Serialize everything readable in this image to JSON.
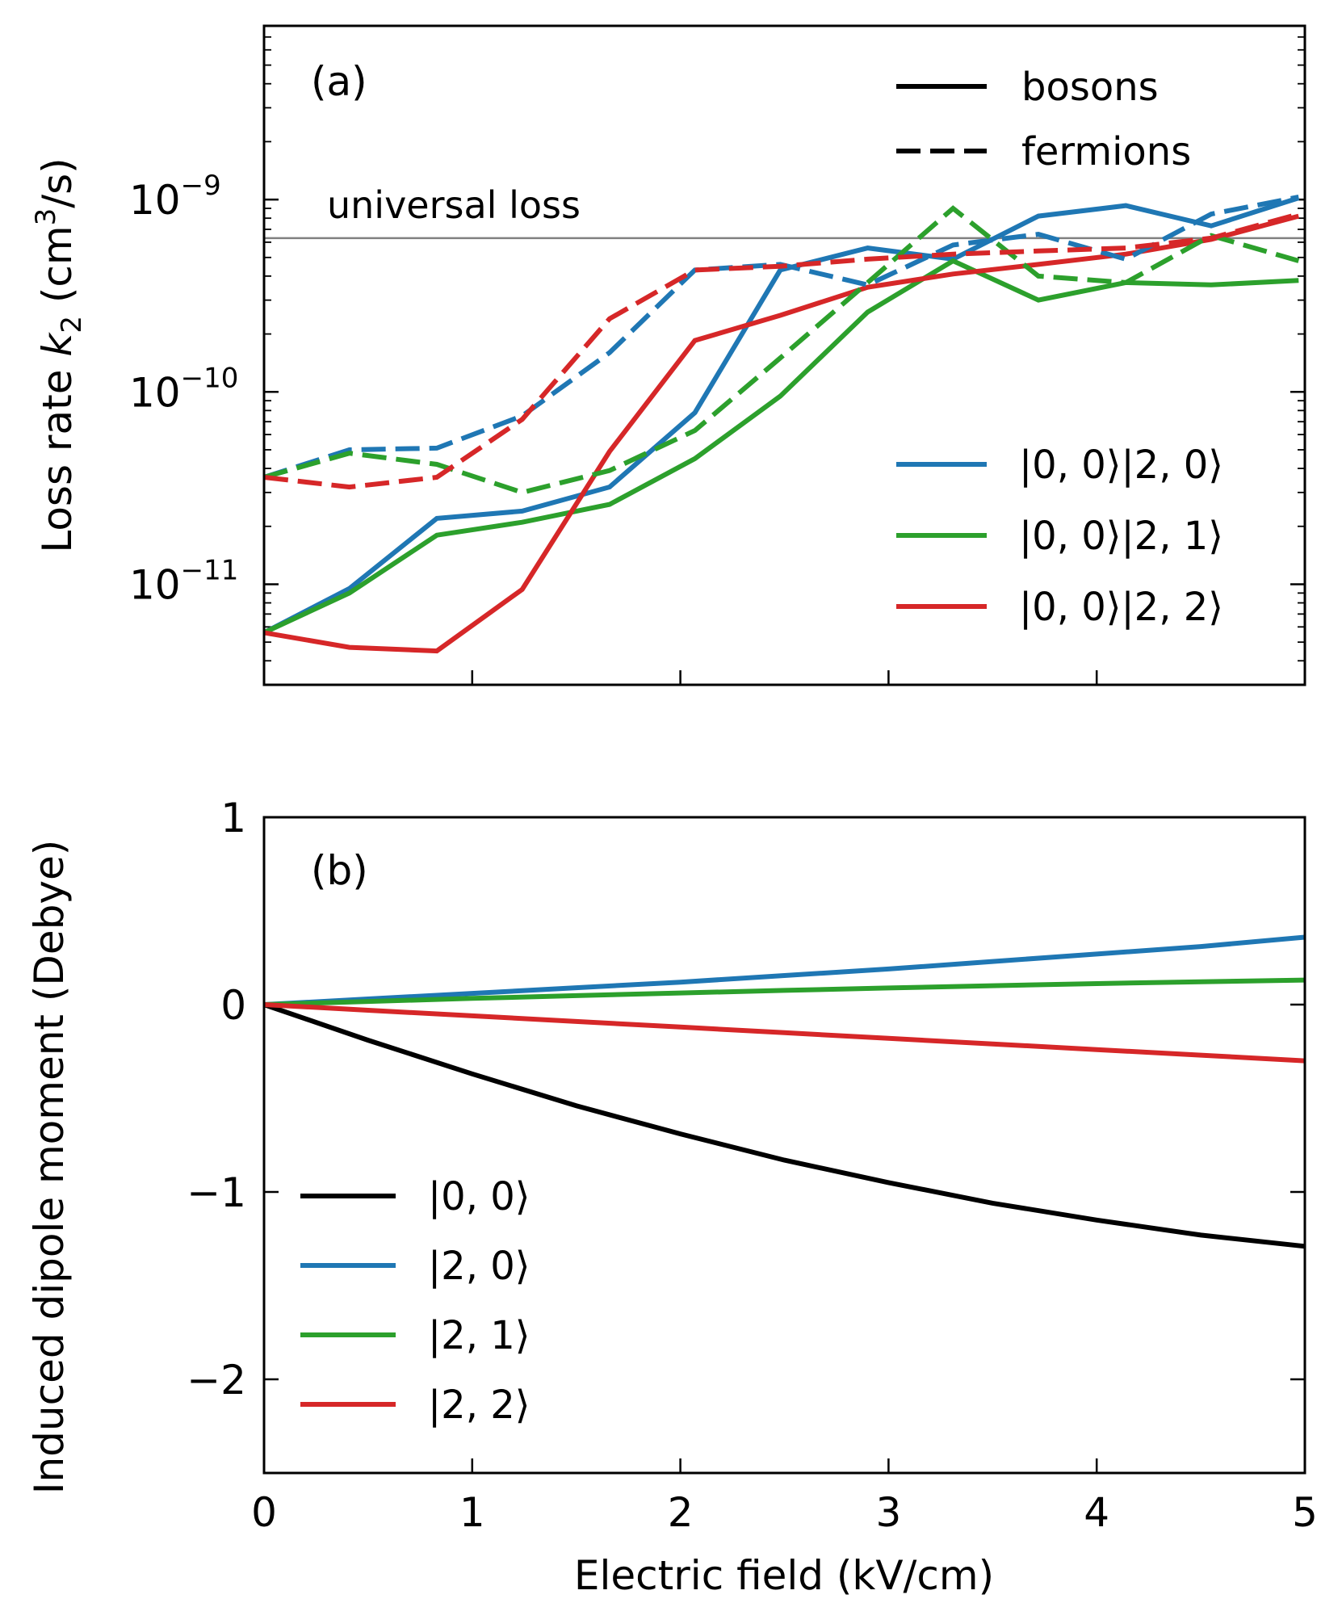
{
  "chart_data": [
    {
      "panel": "(a)",
      "type": "line",
      "yscale": "log",
      "xlim": [
        0,
        5
      ],
      "ylim": [
        3e-12,
        8e-09
      ],
      "ylabel_prefix": "Loss rate ",
      "ylabel_var": "k",
      "ylabel_sub": "2",
      "ylabel_unit_pre": " (cm",
      "ylabel_unit_exp": "3",
      "ylabel_unit_post": "/s)",
      "yticks": [
        {
          "value": 1e-09,
          "base": "10",
          "exp": "−9"
        },
        {
          "value": 1e-10,
          "base": "10",
          "exp": "−10"
        },
        {
          "value": 1e-11,
          "base": "10",
          "exp": "−11"
        }
      ],
      "reference_line": {
        "value": 6.3e-10,
        "label": "universal loss",
        "color": "#808080"
      },
      "style_legend": [
        {
          "label": "bosons",
          "style": "solid"
        },
        {
          "label": "fermions",
          "style": "dashed"
        }
      ],
      "color_legend": [
        {
          "label": "|0, 0⟩|2, 0⟩",
          "color": "#1f77b4"
        },
        {
          "label": "|0, 0⟩|2, 1⟩",
          "color": "#2ca02c"
        },
        {
          "label": "|0, 0⟩|2, 2⟩",
          "color": "#d62728"
        }
      ],
      "series": [
        {
          "name": "|0, 0⟩|2, 0⟩ bosons",
          "color": "#1f77b4",
          "style": "solid",
          "x": [
            0,
            0.41,
            0.83,
            1.24,
            1.66,
            2.07,
            2.48,
            2.9,
            3.31,
            3.72,
            4.14,
            4.55,
            4.97
          ],
          "y": [
            5.6e-12,
            9.5e-12,
            2.2e-11,
            2.4e-11,
            3.2e-11,
            7.8e-11,
            4.3e-10,
            5.6e-10,
            4.9e-10,
            8.2e-10,
            9.3e-10,
            7.3e-10,
            1.02e-09
          ]
        },
        {
          "name": "|0, 0⟩|2, 1⟩ bosons",
          "color": "#2ca02c",
          "style": "solid",
          "x": [
            0,
            0.41,
            0.83,
            1.24,
            1.66,
            2.07,
            2.48,
            2.9,
            3.31,
            3.72,
            4.14,
            4.55,
            4.97
          ],
          "y": [
            5.6e-12,
            9e-12,
            1.8e-11,
            2.1e-11,
            2.6e-11,
            4.5e-11,
            9.5e-11,
            2.6e-10,
            4.8e-10,
            3e-10,
            3.7e-10,
            3.6e-10,
            3.8e-10
          ]
        },
        {
          "name": "|0, 0⟩|2, 2⟩ bosons",
          "color": "#d62728",
          "style": "solid",
          "x": [
            0,
            0.41,
            0.83,
            1.24,
            1.66,
            2.07,
            2.48,
            2.9,
            3.31,
            3.72,
            4.14,
            4.55,
            4.97
          ],
          "y": [
            5.6e-12,
            4.7e-12,
            4.5e-12,
            9.4e-12,
            4.9e-11,
            1.85e-10,
            2.5e-10,
            3.5e-10,
            4.1e-10,
            4.6e-10,
            5.2e-10,
            6.2e-10,
            8.2e-10
          ]
        },
        {
          "name": "|0, 0⟩|2, 0⟩ fermions",
          "color": "#1f77b4",
          "style": "dashed",
          "x": [
            0,
            0.41,
            0.83,
            1.24,
            1.66,
            2.07,
            2.48,
            2.9,
            3.31,
            3.72,
            4.14,
            4.55,
            4.97
          ],
          "y": [
            3.6e-11,
            5e-11,
            5.1e-11,
            7.5e-11,
            1.6e-10,
            4.3e-10,
            4.6e-10,
            3.6e-10,
            5.8e-10,
            6.6e-10,
            4.9e-10,
            8.4e-10,
            1.03e-09
          ]
        },
        {
          "name": "|0, 0⟩|2, 1⟩ fermions",
          "color": "#2ca02c",
          "style": "dashed",
          "x": [
            0,
            0.41,
            0.83,
            1.24,
            1.66,
            2.07,
            2.48,
            2.9,
            3.31,
            3.72,
            4.14,
            4.55,
            4.97
          ],
          "y": [
            3.6e-11,
            4.8e-11,
            4.2e-11,
            3e-11,
            3.9e-11,
            6.3e-11,
            1.5e-10,
            3.7e-10,
            9e-10,
            4e-10,
            3.7e-10,
            6.5e-10,
            4.8e-10
          ]
        },
        {
          "name": "|0, 0⟩|2, 2⟩ fermions",
          "color": "#d62728",
          "style": "dashed",
          "x": [
            0,
            0.41,
            0.83,
            1.24,
            1.66,
            2.07,
            2.48,
            2.9,
            3.31,
            3.72,
            4.14,
            4.55,
            4.97
          ],
          "y": [
            3.6e-11,
            3.2e-11,
            3.6e-11,
            7.2e-11,
            2.4e-10,
            4.3e-10,
            4.5e-10,
            4.9e-10,
            5.2e-10,
            5.4e-10,
            5.6e-10,
            6.3e-10,
            8.4e-10
          ]
        }
      ]
    },
    {
      "panel": "(b)",
      "type": "line",
      "yscale": "linear",
      "xlim": [
        0,
        5
      ],
      "ylim": [
        -2.5,
        1
      ],
      "xlabel": "Electric field (kV/cm)",
      "ylabel": "Induced dipole moment (Debye)",
      "xticks": [
        {
          "value": 0,
          "label": "0"
        },
        {
          "value": 1,
          "label": "1"
        },
        {
          "value": 2,
          "label": "2"
        },
        {
          "value": 3,
          "label": "3"
        },
        {
          "value": 4,
          "label": "4"
        },
        {
          "value": 5,
          "label": "5"
        }
      ],
      "yticks": [
        {
          "value": 1,
          "label": "1"
        },
        {
          "value": 0,
          "label": "0"
        },
        {
          "value": -1,
          "label": "−1"
        },
        {
          "value": -2,
          "label": "−2"
        }
      ],
      "legend": [
        {
          "label": "|0, 0⟩",
          "color": "#000000"
        },
        {
          "label": "|2, 0⟩",
          "color": "#1f77b4"
        },
        {
          "label": "|2, 1⟩",
          "color": "#2ca02c"
        },
        {
          "label": "|2, 2⟩",
          "color": "#d62728"
        }
      ],
      "series": [
        {
          "name": "|0, 0⟩",
          "color": "#000000",
          "x": [
            0,
            0.5,
            1,
            1.5,
            2,
            2.5,
            3,
            3.5,
            4,
            4.5,
            5
          ],
          "y": [
            0,
            -0.19,
            -0.37,
            -0.54,
            -0.69,
            -0.83,
            -0.95,
            -1.06,
            -1.15,
            -1.23,
            -1.29
          ]
        },
        {
          "name": "|2, 0⟩",
          "color": "#1f77b4",
          "x": [
            0,
            0.5,
            1,
            1.5,
            2,
            2.5,
            3,
            3.5,
            4,
            4.5,
            5
          ],
          "y": [
            0,
            0.03,
            0.06,
            0.09,
            0.12,
            0.155,
            0.19,
            0.23,
            0.27,
            0.31,
            0.36
          ]
        },
        {
          "name": "|2, 1⟩",
          "color": "#2ca02c",
          "x": [
            0,
            0.5,
            1,
            1.5,
            2,
            2.5,
            3,
            3.5,
            4,
            4.5,
            5
          ],
          "y": [
            0,
            0.017,
            0.033,
            0.048,
            0.062,
            0.076,
            0.089,
            0.101,
            0.112,
            0.122,
            0.131
          ]
        },
        {
          "name": "|2, 2⟩",
          "color": "#d62728",
          "x": [
            0,
            0.5,
            1,
            1.5,
            2,
            2.5,
            3,
            3.5,
            4,
            4.5,
            5
          ],
          "y": [
            0,
            -0.03,
            -0.06,
            -0.09,
            -0.12,
            -0.15,
            -0.18,
            -0.21,
            -0.24,
            -0.27,
            -0.3
          ]
        }
      ]
    }
  ]
}
